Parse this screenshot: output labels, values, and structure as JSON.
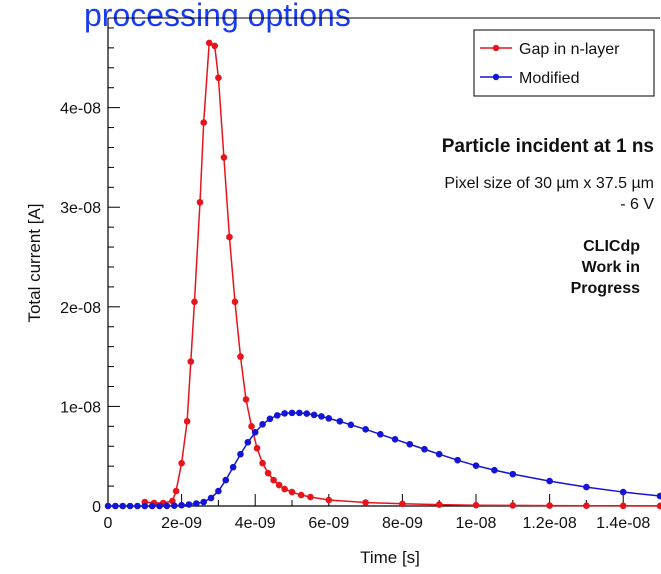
{
  "page_title": "processing options",
  "chart_data": {
    "type": "line",
    "xlabel": "Time [s]",
    "ylabel": "Total current [A]",
    "xlim": [
      0,
      1.5e-08
    ],
    "ylim": [
      0,
      4.9e-08
    ],
    "x_ticks": [
      0,
      2e-09,
      4e-09,
      6e-09,
      8e-09,
      1e-08,
      1.2e-08,
      1.4e-08
    ],
    "x_tick_labels": [
      "0",
      "2e-09",
      "4e-09",
      "6e-09",
      "8e-09",
      "1e-08",
      "1.2e-08",
      "1.4e-08"
    ],
    "y_ticks": [
      0,
      1e-08,
      2e-08,
      3e-08,
      4e-08
    ],
    "y_tick_labels": [
      "0",
      "1e-08",
      "2e-08",
      "3e-08",
      "4e-08"
    ],
    "grid": false,
    "legend": "top-right",
    "annotations": [
      "Particle incident at 1 ns",
      "Pixel size of 30 µm x 37.5 µm",
      "- 6 V",
      "CLICdp",
      "Work in",
      "Progress"
    ],
    "series": [
      {
        "name": "Gap in n-layer",
        "color": "#e8141b",
        "x": [
          1e-09,
          1.25e-09,
          1.5e-09,
          1.75e-09,
          1.85e-09,
          2e-09,
          2.15e-09,
          2.25e-09,
          2.35e-09,
          2.5e-09,
          2.6e-09,
          2.75e-09,
          2.9e-09,
          3e-09,
          3.15e-09,
          3.3e-09,
          3.45e-09,
          3.6e-09,
          3.75e-09,
          3.9e-09,
          4.05e-09,
          4.2e-09,
          4.35e-09,
          4.5e-09,
          4.65e-09,
          4.8e-09,
          5e-09,
          5.25e-09,
          5.5e-09,
          6e-09,
          7e-09,
          8e-09,
          9e-09,
          1e-08,
          1.1e-08,
          1.2e-08,
          1.3e-08,
          1.4e-08,
          1.5e-08
        ],
        "values": [
          4e-10,
          3e-10,
          3e-10,
          5e-10,
          1.5e-09,
          4.3e-09,
          8.5e-09,
          1.45e-08,
          2.05e-08,
          3.05e-08,
          3.85e-08,
          4.65e-08,
          4.62e-08,
          4.3e-08,
          3.5e-08,
          2.7e-08,
          2.05e-08,
          1.5e-08,
          1.07e-08,
          8e-09,
          5.8e-09,
          4.3e-09,
          3.3e-09,
          2.6e-09,
          2.1e-09,
          1.7e-09,
          1.4e-09,
          1.1e-09,
          9e-10,
          6e-10,
          3.5e-10,
          2.2e-10,
          1.4e-10,
          8e-11,
          6e-11,
          4e-11,
          3e-11,
          2e-11,
          1e-11
        ]
      },
      {
        "name": "Modified",
        "color": "#1414d6",
        "x": [
          0,
          2e-10,
          4e-10,
          6e-10,
          8e-10,
          1e-09,
          1.2e-09,
          1.4e-09,
          1.6e-09,
          1.8e-09,
          2e-09,
          2.2e-09,
          2.4e-09,
          2.6e-09,
          2.8e-09,
          3e-09,
          3.2e-09,
          3.4e-09,
          3.6e-09,
          3.8e-09,
          4e-09,
          4.2e-09,
          4.4e-09,
          4.6e-09,
          4.8e-09,
          5e-09,
          5.2e-09,
          5.4e-09,
          5.6e-09,
          5.8e-09,
          6e-09,
          6.3e-09,
          6.6e-09,
          7e-09,
          7.4e-09,
          7.8e-09,
          8.2e-09,
          8.6e-09,
          9e-09,
          9.5e-09,
          1e-08,
          1.05e-08,
          1.1e-08,
          1.2e-08,
          1.3e-08,
          1.4e-08,
          1.5e-08
        ],
        "values": [
          0,
          0,
          0,
          0,
          0,
          0,
          0,
          0,
          1e-11,
          3e-11,
          8e-11,
          1.5e-10,
          2.5e-10,
          4e-10,
          8e-10,
          1.5e-09,
          2.6e-09,
          3.9e-09,
          5.2e-09,
          6.4e-09,
          7.4e-09,
          8.2e-09,
          8.75e-09,
          9.1e-09,
          9.3e-09,
          9.35e-09,
          9.35e-09,
          9.28e-09,
          9.15e-09,
          9e-09,
          8.8e-09,
          8.5e-09,
          8.15e-09,
          7.7e-09,
          7.2e-09,
          6.7e-09,
          6.2e-09,
          5.7e-09,
          5.2e-09,
          4.6e-09,
          4.05e-09,
          3.6e-09,
          3.2e-09,
          2.5e-09,
          1.9e-09,
          1.4e-09,
          1e-09
        ]
      }
    ]
  }
}
